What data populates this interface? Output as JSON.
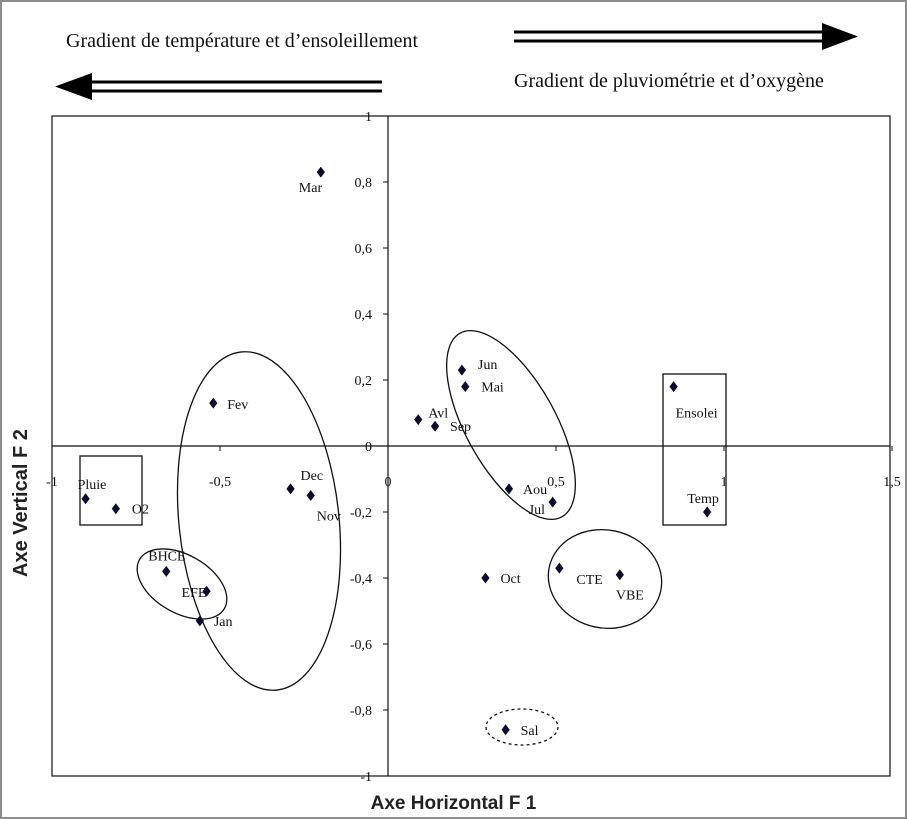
{
  "header": {
    "left_gradient_label": "Gradient de température et d’ensoleillement",
    "right_gradient_label": "Gradient de pluviométrie et d’oxygène"
  },
  "chart_data": {
    "type": "scatter",
    "title": "",
    "xlabel": "Axe Horizontal F 1",
    "ylabel": "Axe Vertical F 2",
    "xlim": [
      -1,
      1.5
    ],
    "ylim": [
      -1,
      1
    ],
    "x_ticks": [
      {
        "value": -1,
        "label": "-1"
      },
      {
        "value": -0.5,
        "label": "-0,5"
      },
      {
        "value": 0,
        "label": "0"
      },
      {
        "value": 0.5,
        "label": "0,5"
      },
      {
        "value": 1,
        "label": "1"
      },
      {
        "value": 1.5,
        "label": "1,5"
      }
    ],
    "y_ticks": [
      {
        "value": 1,
        "label": "1"
      },
      {
        "value": 0.8,
        "label": "0,8"
      },
      {
        "value": 0.6,
        "label": "0,6"
      },
      {
        "value": 0.4,
        "label": "0,4"
      },
      {
        "value": 0.2,
        "label": "0,2"
      },
      {
        "value": 0,
        "label": "0"
      },
      {
        "value": -0.2,
        "label": "-0,2"
      },
      {
        "value": -0.4,
        "label": "-0,4"
      },
      {
        "value": -0.6,
        "label": "-0,6"
      },
      {
        "value": -0.8,
        "label": "-0,8"
      },
      {
        "value": -1,
        "label": "-1"
      }
    ],
    "grid": false,
    "legend": "none",
    "marker_color": "#0b0b2e",
    "points": [
      {
        "label": "Mar",
        "x": -0.2,
        "y": 0.83
      },
      {
        "label": "Fev",
        "x": -0.52,
        "y": 0.13
      },
      {
        "label": "Dec",
        "x": -0.29,
        "y": -0.13
      },
      {
        "label": "Nov",
        "x": -0.23,
        "y": -0.15
      },
      {
        "label": "Pluie",
        "x": -0.9,
        "y": -0.16
      },
      {
        "label": "O2",
        "x": -0.81,
        "y": -0.19
      },
      {
        "label": "BHCE",
        "x": -0.66,
        "y": -0.38
      },
      {
        "label": "EFE",
        "x": -0.54,
        "y": -0.44
      },
      {
        "label": "Jan",
        "x": -0.56,
        "y": -0.53
      },
      {
        "label": "Jun",
        "x": 0.22,
        "y": 0.23
      },
      {
        "label": "Mai",
        "x": 0.23,
        "y": 0.18
      },
      {
        "label": "Avl",
        "x": 0.09,
        "y": 0.08
      },
      {
        "label": "Sep",
        "x": 0.14,
        "y": 0.06
      },
      {
        "label": "Aou",
        "x": 0.36,
        "y": -0.13
      },
      {
        "label": "Jul",
        "x": 0.49,
        "y": -0.17
      },
      {
        "label": "Oct",
        "x": 0.29,
        "y": -0.4
      },
      {
        "label": "CTE",
        "x": 0.51,
        "y": -0.37
      },
      {
        "label": "VBE",
        "x": 0.69,
        "y": -0.39
      },
      {
        "label": "Sal",
        "x": 0.35,
        "y": -0.86
      },
      {
        "label": "Ensolei",
        "x": 0.85,
        "y": 0.18
      },
      {
        "label": "Temp",
        "x": 0.95,
        "y": -0.2
      }
    ]
  }
}
